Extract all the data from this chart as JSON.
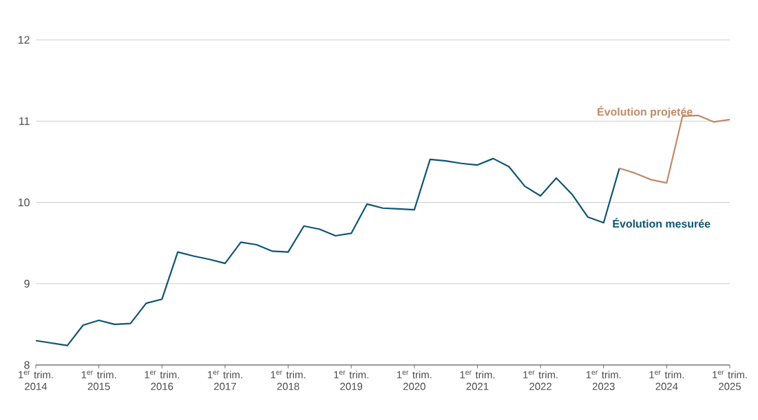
{
  "chart_data": {
    "type": "line",
    "categories": [
      "1$^{er}$ trim. 2014",
      null,
      null,
      null,
      "1$^{er}$ trim. 2015",
      null,
      null,
      null,
      "1$^{er}$ trim. 2016",
      null,
      null,
      null,
      "1$^{er}$ trim. 2017",
      null,
      null,
      null,
      "1$^{er}$ trim. 2018",
      null,
      null,
      null,
      "1$^{er}$ trim. 2019",
      null,
      null,
      null,
      "1$^{er}$ trim. 2020",
      null,
      null,
      null,
      "1$^{er}$ trim. 2021",
      null,
      null,
      null,
      "1$^{er}$ trim. 2022",
      null,
      null,
      null,
      "1$^{er}$ trim. 2023",
      null,
      null,
      null,
      "1$^{er}$ trim. 2024",
      null,
      null,
      null,
      "1$^{er}$ trim. 2025"
    ],
    "series": [
      {
        "name": "Évolution mesurée",
        "color": "#0d5470",
        "values": [
          8.3,
          8.27,
          8.24,
          8.49,
          8.55,
          8.5,
          8.51,
          8.76,
          8.81,
          9.39,
          9.34,
          9.3,
          9.25,
          9.51,
          9.48,
          9.4,
          9.39,
          9.71,
          9.67,
          9.59,
          9.62,
          9.98,
          9.93,
          9.92,
          9.91,
          10.53,
          10.51,
          10.48,
          10.46,
          10.54,
          10.44,
          10.2,
          10.08,
          10.3,
          10.1,
          9.82,
          9.75,
          10.42,
          null,
          null,
          null,
          null,
          null,
          null,
          null
        ]
      },
      {
        "name": "Évolution projetée",
        "color": "#c08a68",
        "values": [
          null,
          null,
          null,
          null,
          null,
          null,
          null,
          null,
          null,
          null,
          null,
          null,
          null,
          null,
          null,
          null,
          null,
          null,
          null,
          null,
          null,
          null,
          null,
          null,
          null,
          null,
          null,
          null,
          null,
          null,
          null,
          null,
          null,
          null,
          null,
          null,
          null,
          10.42,
          10.36,
          10.28,
          10.24,
          11.06,
          11.07,
          10.99,
          11.02
        ]
      }
    ],
    "ylim": [
      8,
      12
    ],
    "yticks": [
      8,
      9,
      10,
      11,
      12
    ],
    "grid": "y",
    "marker": "none",
    "line_style": "solid"
  }
}
